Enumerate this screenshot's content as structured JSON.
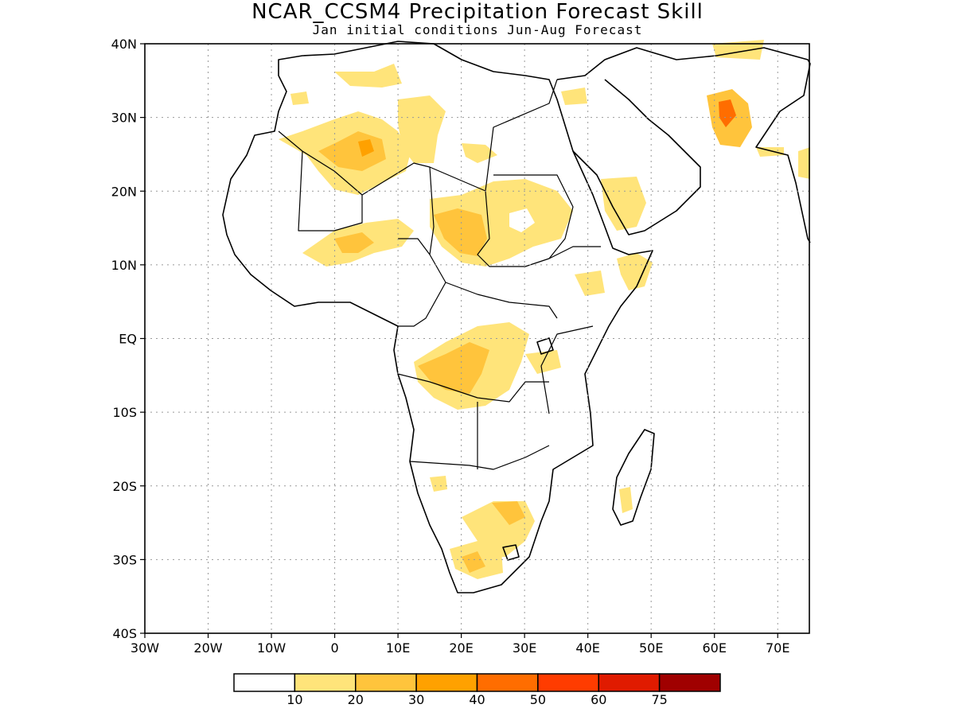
{
  "title": "NCAR_CCSM4 Precipitation Forecast Skill",
  "subtitle": "Jan initial conditions  Jun-Aug Forecast",
  "map": {
    "lon_range": [
      -30,
      75
    ],
    "lat_range": [
      -40,
      40
    ],
    "grid": true,
    "lat_labels": [
      "40N",
      "30N",
      "20N",
      "10N",
      "EQ",
      "10S",
      "20S",
      "30S",
      "40S"
    ],
    "lon_labels": [
      "30W",
      "20W",
      "10W",
      "0",
      "10E",
      "20E",
      "30E",
      "40E",
      "50E",
      "60E",
      "70E"
    ]
  },
  "colorbar": {
    "colors": [
      "#ffffff",
      "#ffe47a",
      "#ffc43c",
      "#ffa100",
      "#ff6d00",
      "#ff3c00",
      "#e01b00",
      "#a00000"
    ],
    "labels": [
      "10",
      "20",
      "30",
      "40",
      "50",
      "60",
      "75"
    ]
  }
}
